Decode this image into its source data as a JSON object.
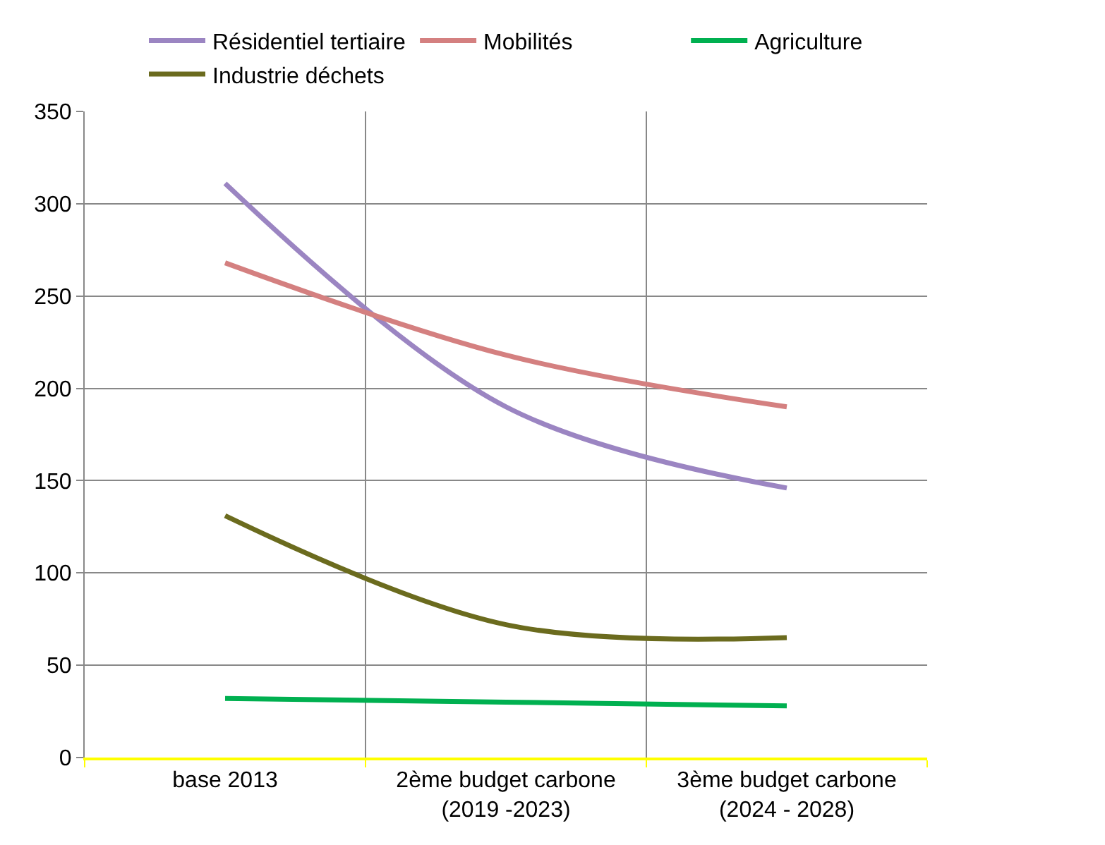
{
  "chart_data": {
    "type": "line",
    "categories": [
      "base 2013",
      "2ème budget carbone\n(2019 -2023)",
      "3ème budget carbone\n(2024 - 2028)"
    ],
    "series": [
      {
        "name": "Résidentiel tertiaire",
        "color": "#9b85c2",
        "values": [
          311,
          190,
          146
        ]
      },
      {
        "name": "Mobilités",
        "color": "#d48080",
        "values": [
          268,
          218,
          190
        ]
      },
      {
        "name": "Agriculture",
        "color": "#00b050",
        "values": [
          32,
          30,
          28
        ]
      },
      {
        "name": "Industrie déchets",
        "color": "#6b6b1e",
        "values": [
          131,
          72,
          65
        ]
      }
    ],
    "ylim": [
      0,
      350
    ],
    "yticks": [
      0,
      50,
      100,
      150,
      200,
      250,
      300,
      350
    ],
    "grid": true,
    "legend": "top",
    "marker": "none",
    "line_style": "solid"
  }
}
